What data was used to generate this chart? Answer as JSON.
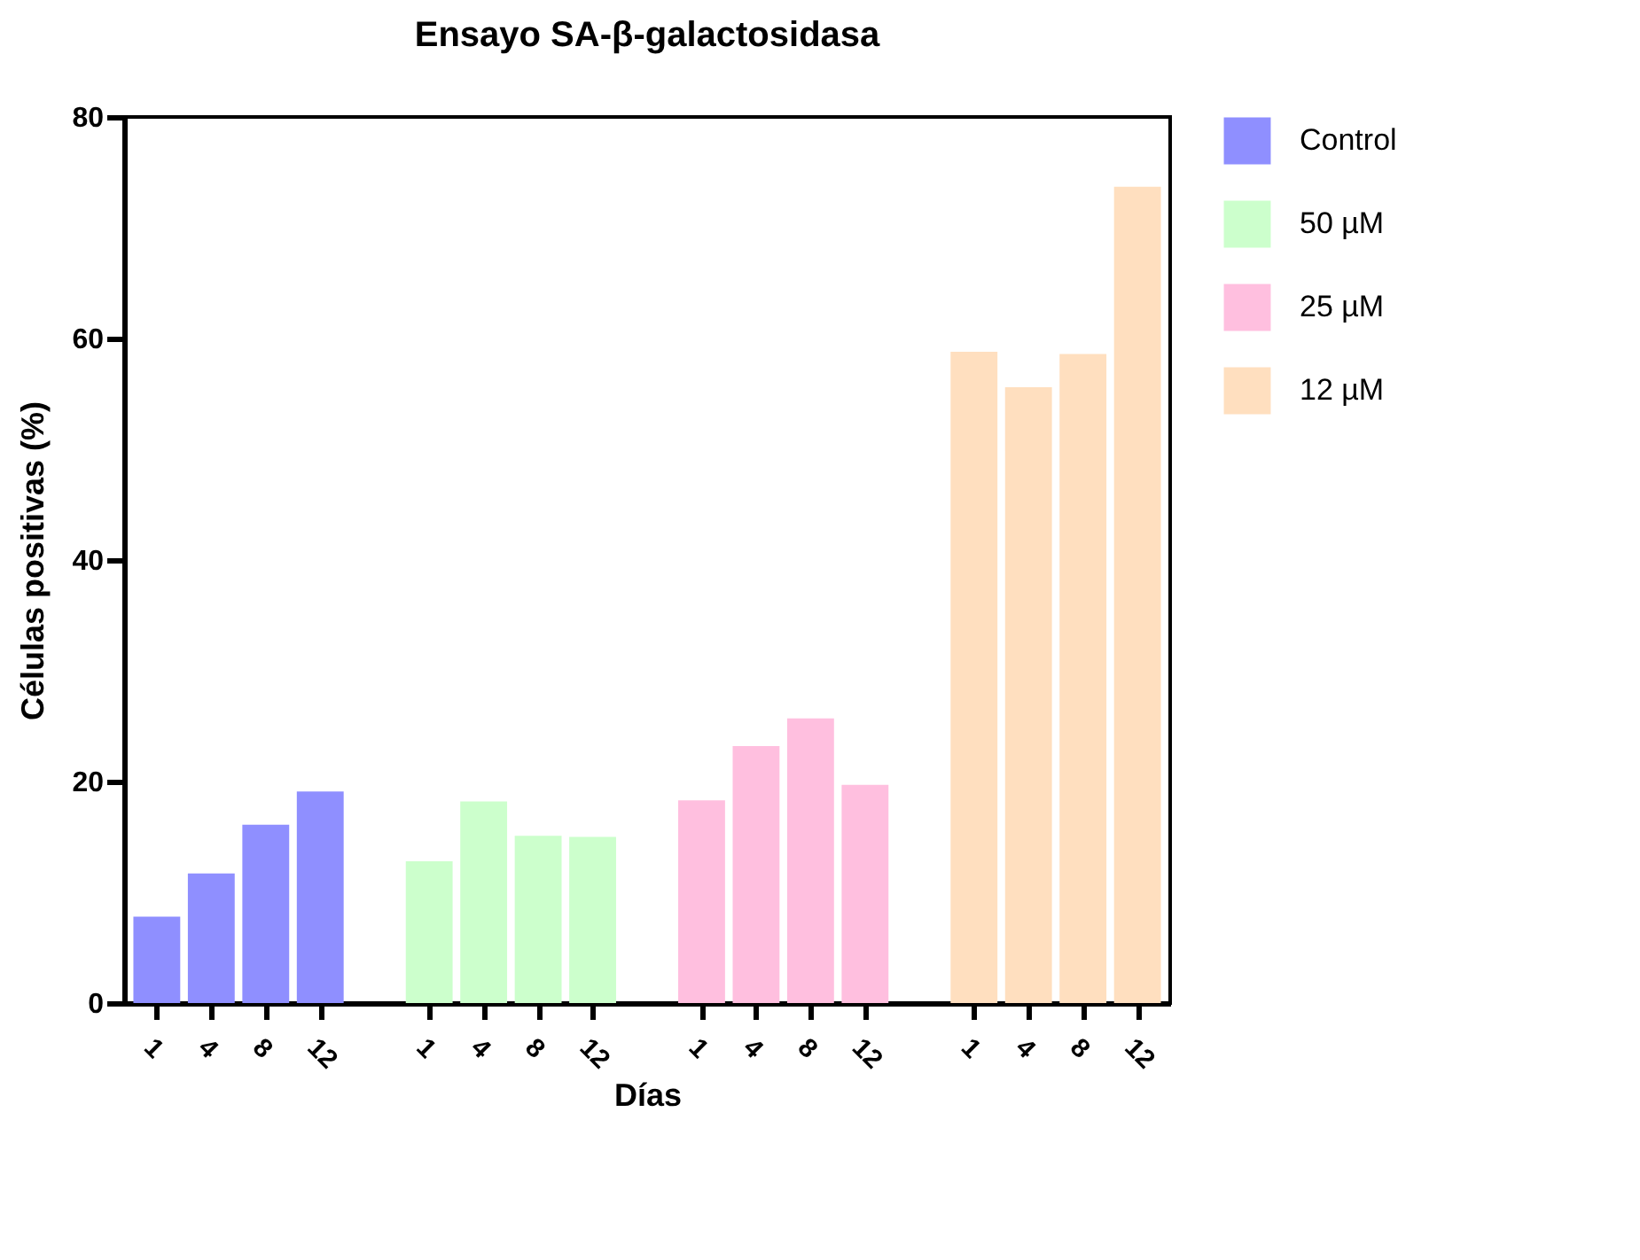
{
  "chart_data": {
    "type": "bar",
    "title": "Ensayo SA-β-galactosidasa",
    "xlabel": "Días",
    "ylabel": "Células positivas (%)",
    "categories": [
      "1",
      "4",
      "8",
      "12",
      null,
      "1",
      "4",
      "8",
      "12",
      null,
      "1",
      "4",
      "8",
      "12",
      null,
      "1",
      "4",
      "8",
      "12"
    ],
    "series": [
      {
        "name": "Control",
        "color": "#8f8fff",
        "values": [
          7.8,
          11.7,
          16.1,
          19.1,
          null,
          null,
          null,
          null,
          null,
          null,
          null,
          null,
          null,
          null,
          null,
          null,
          null,
          null,
          null
        ]
      },
      {
        "name": "50 µM",
        "color": "#ccffcc",
        "values": [
          null,
          null,
          null,
          null,
          null,
          12.8,
          18.2,
          15.1,
          15.0,
          null,
          null,
          null,
          null,
          null,
          null,
          null,
          null,
          null,
          null
        ]
      },
      {
        "name": "25 µM",
        "color": "#ffbfdf",
        "values": [
          null,
          null,
          null,
          null,
          null,
          null,
          null,
          null,
          null,
          null,
          18.3,
          23.2,
          25.7,
          19.7,
          null,
          null,
          null,
          null,
          null
        ]
      },
      {
        "name": "12 µM",
        "color": "#ffdfbf",
        "values": [
          null,
          null,
          null,
          null,
          null,
          null,
          null,
          null,
          null,
          null,
          null,
          null,
          null,
          null,
          null,
          58.8,
          55.6,
          58.6,
          73.7
        ]
      }
    ],
    "ylim": [
      0,
      80
    ],
    "yticks": [
      0,
      20,
      40,
      60,
      80
    ],
    "grid": false,
    "legend": "top right"
  }
}
